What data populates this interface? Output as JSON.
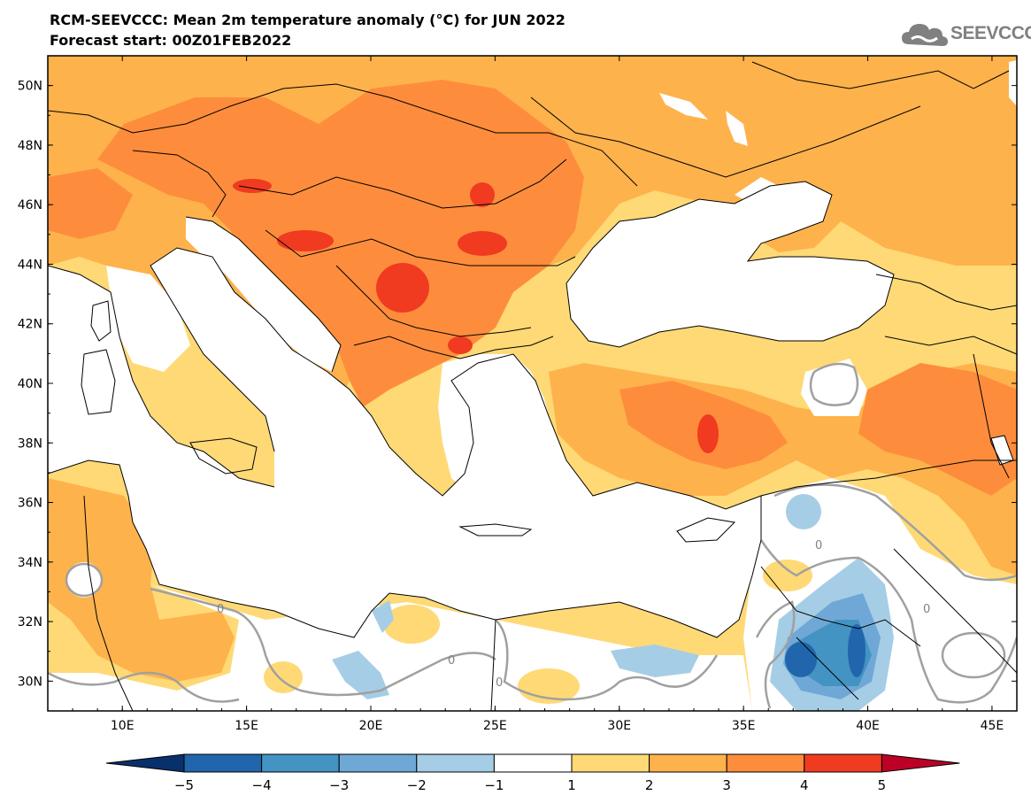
{
  "header": {
    "title": "RCM-SEEVCCC: Mean 2m temperature anomaly (°C) for JUN 2022",
    "subtitle": "Forecast start: 00Z01FEB2022"
  },
  "logo": {
    "text": "SEEVCCC",
    "icon": "cloud-icon"
  },
  "map": {
    "lat_range": [
      29,
      51
    ],
    "lon_range": [
      7,
      46
    ],
    "lat_ticks": [
      "50N",
      "48N",
      "46N",
      "44N",
      "42N",
      "40N",
      "38N",
      "36N",
      "34N",
      "32N",
      "30N"
    ],
    "lon_ticks": [
      "10E",
      "15E",
      "20E",
      "25E",
      "30E",
      "35E",
      "40E",
      "45E"
    ],
    "contour_labels": [
      "0",
      "0",
      "0",
      "0",
      "0"
    ]
  },
  "colorbar": {
    "labels": [
      "−5",
      "−4",
      "−3",
      "−2",
      "−1",
      "1",
      "2",
      "3",
      "4",
      "5"
    ],
    "colors": [
      "#08306b",
      "#2166ac",
      "#4393c3",
      "#6fa8d6",
      "#a6cde6",
      "#ffffff",
      "#fed976",
      "#feb24c",
      "#fd8d3c",
      "#f03b20",
      "#bd0026"
    ]
  }
}
